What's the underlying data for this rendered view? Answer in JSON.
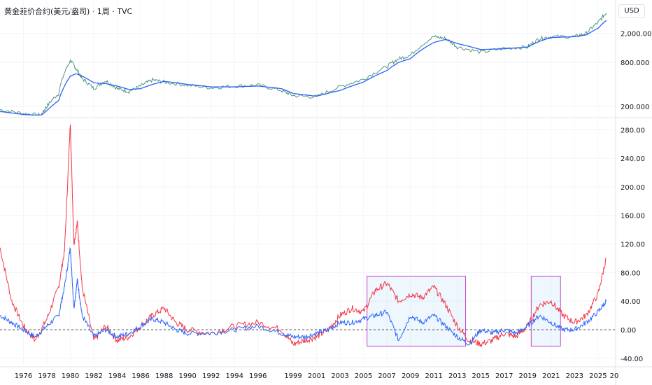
{
  "header": {
    "title": "黄金差价合约(美元/盎司)",
    "interval": "1周",
    "source": "TVC",
    "currency": "USD"
  },
  "chart_data": [
    {
      "type": "line",
      "panel": "price",
      "scale": "log",
      "yticks": [
        "2,000.000",
        "800.000",
        "200.000"
      ],
      "ytick_values": [
        2000,
        800,
        200
      ],
      "x": [
        1974,
        1976,
        1977.5,
        1978,
        1979,
        1980,
        1980.5,
        1981,
        1982,
        1983,
        1984,
        1985,
        1986,
        1987,
        1988,
        1990,
        1992,
        1994,
        1996,
        1998,
        1999,
        2001,
        2003,
        2005,
        2007,
        2008,
        2009,
        2011,
        2012,
        2013,
        2015,
        2017,
        2019,
        2020,
        2021,
        2023,
        2024,
        2025,
        2025.7
      ],
      "series": [
        {
          "color": "#2a7d5a",
          "values": [
            180,
            160,
            150,
            200,
            300,
            850,
            650,
            480,
            350,
            450,
            350,
            320,
            380,
            460,
            430,
            390,
            360,
            380,
            390,
            330,
            280,
            270,
            370,
            470,
            700,
            900,
            1000,
            1800,
            1700,
            1300,
            1100,
            1250,
            1300,
            1700,
            1800,
            1800,
            2000,
            2800,
            3800
          ]
        },
        {
          "color": "#2962ff",
          "values": [
            170,
            155,
            150,
            175,
            240,
            520,
            560,
            520,
            420,
            410,
            380,
            340,
            350,
            400,
            440,
            400,
            370,
            370,
            380,
            350,
            300,
            275,
            330,
            430,
            620,
            800,
            900,
            1500,
            1650,
            1450,
            1200,
            1230,
            1300,
            1550,
            1750,
            1800,
            1900,
            2350,
            3000
          ]
        }
      ]
    },
    {
      "type": "line",
      "panel": "oscillator",
      "yticks": [
        "280.00",
        "240.00",
        "200.00",
        "160.00",
        "120.00",
        "80.00",
        "40.00",
        "0.00",
        "-40.00"
      ],
      "ytick_values": [
        280,
        240,
        200,
        160,
        120,
        80,
        40,
        0,
        -40
      ],
      "ylim": [
        -50,
        295
      ],
      "xticks": [
        "1976",
        "1978",
        "1980",
        "1982",
        "1984",
        "1986",
        "1988",
        "1990",
        "1992",
        "1994",
        "1996",
        "1999",
        "2001",
        "2003",
        "2005",
        "2007",
        "2009",
        "2011",
        "2013",
        "2015",
        "2017",
        "2019",
        "2021",
        "2023",
        "2025",
        "20"
      ],
      "x": [
        1974,
        1975,
        1976,
        1977,
        1978,
        1979,
        1979.5,
        1980,
        1980.3,
        1980.6,
        1981,
        1982,
        1983,
        1984,
        1985,
        1986,
        1987,
        1988,
        1989,
        1990,
        1992,
        1994,
        1996,
        1998,
        1999,
        2000,
        2001,
        2002,
        2003,
        2004,
        2005,
        2006,
        2007,
        2008,
        2009,
        2010,
        2011,
        2012,
        2013,
        2014,
        2015,
        2016,
        2017,
        2018,
        2019,
        2020,
        2021,
        2022,
        2023,
        2024,
        2025,
        2025.7
      ],
      "series": [
        {
          "color": "#f23645",
          "values": [
            115,
            40,
            5,
            -15,
            15,
            60,
            110,
            290,
            120,
            150,
            60,
            -15,
            5,
            -15,
            -10,
            5,
            20,
            30,
            10,
            0,
            -5,
            5,
            10,
            0,
            -20,
            -15,
            -10,
            0,
            20,
            30,
            25,
            55,
            65,
            40,
            50,
            45,
            60,
            35,
            5,
            -15,
            -20,
            -15,
            -5,
            -10,
            5,
            35,
            40,
            20,
            10,
            20,
            50,
            100
          ]
        },
        {
          "color": "#2962ff",
          "values": [
            20,
            10,
            0,
            -10,
            5,
            20,
            60,
            115,
            30,
            70,
            20,
            -10,
            0,
            -10,
            -5,
            5,
            15,
            10,
            0,
            -5,
            -5,
            0,
            5,
            -5,
            -10,
            -10,
            -5,
            0,
            10,
            10,
            15,
            20,
            25,
            -15,
            20,
            10,
            20,
            5,
            -10,
            -20,
            0,
            -5,
            0,
            -5,
            5,
            20,
            10,
            0,
            0,
            10,
            25,
            40
          ]
        }
      ],
      "reference_line": 0
    }
  ],
  "highlights": [
    {
      "x_start": 2005.3,
      "x_end": 2013.7,
      "y_top": 75,
      "y_bottom": -23
    },
    {
      "x_start": 2019.3,
      "x_end": 2021.8,
      "y_top": 75,
      "y_bottom": -23
    }
  ]
}
